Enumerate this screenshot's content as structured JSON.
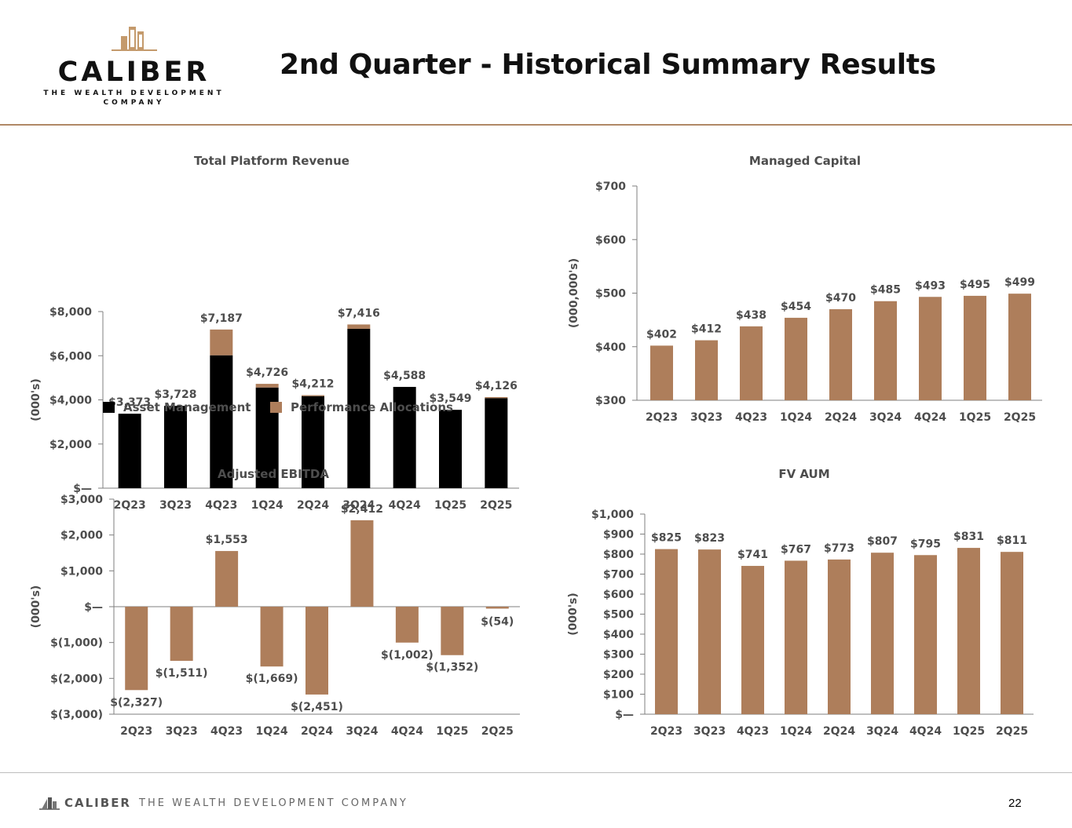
{
  "header": {
    "logo_word": "CALIBER",
    "logo_sub_line1": "THE WEALTH DEVELOPMENT",
    "logo_sub_line2": "COMPANY",
    "title": "2nd Quarter - Historical Summary Results"
  },
  "footer": {
    "logo_word": "CALIBER",
    "tagline": "THE WEALTH DEVELOPMENT COMPANY",
    "page_number": "22"
  },
  "colors": {
    "asset_management": "#000000",
    "performance_allocations": "#ae7e5b",
    "bar": "#ae7e5b",
    "axis": "#7f7f7f",
    "text": "#4d4d4d",
    "accent_rule": "#b08866"
  },
  "chart_data": [
    {
      "id": "revenue",
      "type": "bar",
      "stacked": true,
      "title": "Total Platform Revenue",
      "ylabel": "(000's)",
      "categories": [
        "2Q23",
        "3Q23",
        "4Q23",
        "1Q24",
        "2Q24",
        "3Q24",
        "4Q24",
        "1Q25",
        "2Q25"
      ],
      "series": [
        {
          "name": "Asset Management",
          "values": [
            3373,
            3728,
            6020,
            4560,
            4170,
            7220,
            4588,
            3549,
            4080
          ]
        },
        {
          "name": "Performance Allocations",
          "values": [
            0,
            0,
            1167,
            166,
            42,
            196,
            0,
            0,
            46
          ]
        }
      ],
      "data_labels": [
        "$3,373",
        "$3,728",
        "$7,187",
        "$4,726",
        "$4,212",
        "$7,416",
        "$4,588",
        "$3,549",
        "$4,126"
      ],
      "yticks": [
        0,
        2000,
        4000,
        6000,
        8000
      ],
      "ytick_labels": [
        "$—",
        "$2,000",
        "$4,000",
        "$6,000",
        "$8,000"
      ],
      "ylim": [
        0,
        8000
      ],
      "legend": [
        "Asset Management",
        "Performance Allocations"
      ],
      "legend_position": "bottom"
    },
    {
      "id": "managed",
      "type": "bar",
      "title": "Managed Capital",
      "ylabel": "(000,000's)",
      "categories": [
        "2Q23",
        "3Q23",
        "4Q23",
        "1Q24",
        "2Q24",
        "3Q24",
        "4Q24",
        "1Q25",
        "2Q25"
      ],
      "values": [
        402,
        412,
        438,
        454,
        470,
        485,
        493,
        495,
        499
      ],
      "data_labels": [
        "$402",
        "$412",
        "$438",
        "$454",
        "$470",
        "$485",
        "$493",
        "$495",
        "$499"
      ],
      "yticks": [
        300,
        400,
        500,
        600,
        700
      ],
      "ytick_labels": [
        "$300",
        "$400",
        "$500",
        "$600",
        "$700"
      ],
      "ylim": [
        300,
        700
      ]
    },
    {
      "id": "ebitda",
      "type": "bar",
      "title": "Adjusted EBITDA",
      "ylabel": "(000's)",
      "categories": [
        "2Q23",
        "3Q23",
        "4Q23",
        "1Q24",
        "2Q24",
        "3Q24",
        "4Q24",
        "1Q25",
        "2Q25"
      ],
      "values": [
        -2327,
        -1511,
        1553,
        -1669,
        -2451,
        2412,
        -1002,
        -1352,
        -54
      ],
      "data_labels": [
        "$(2,327)",
        "$(1,511)",
        "$1,553",
        "$(1,669)",
        "$(2,451)",
        "$2,412",
        "$(1,002)",
        "$(1,352)",
        "$(54)"
      ],
      "yticks": [
        -3000,
        -2000,
        -1000,
        0,
        1000,
        2000,
        3000
      ],
      "ytick_labels": [
        "$(3,000)",
        "$(2,000)",
        "$(1,000)",
        "$—",
        "$1,000",
        "$2,000",
        "$3,000"
      ],
      "ylim": [
        -3000,
        3000
      ]
    },
    {
      "id": "aum",
      "type": "bar",
      "title": "FV AUM",
      "ylabel": "(000's)",
      "categories": [
        "2Q23",
        "3Q23",
        "4Q23",
        "1Q24",
        "2Q24",
        "3Q24",
        "4Q24",
        "1Q25",
        "2Q25"
      ],
      "values": [
        825,
        823,
        741,
        767,
        773,
        807,
        795,
        831,
        811
      ],
      "data_labels": [
        "$825",
        "$823",
        "$741",
        "$767",
        "$773",
        "$807",
        "$795",
        "$831",
        "$811"
      ],
      "yticks": [
        0,
        100,
        200,
        300,
        400,
        500,
        600,
        700,
        800,
        900,
        1000
      ],
      "ytick_labels": [
        "$—",
        "$100",
        "$200",
        "$300",
        "$400",
        "$500",
        "$600",
        "$700",
        "$800",
        "$900",
        "$1,000"
      ],
      "ylim": [
        0,
        1000
      ]
    }
  ]
}
